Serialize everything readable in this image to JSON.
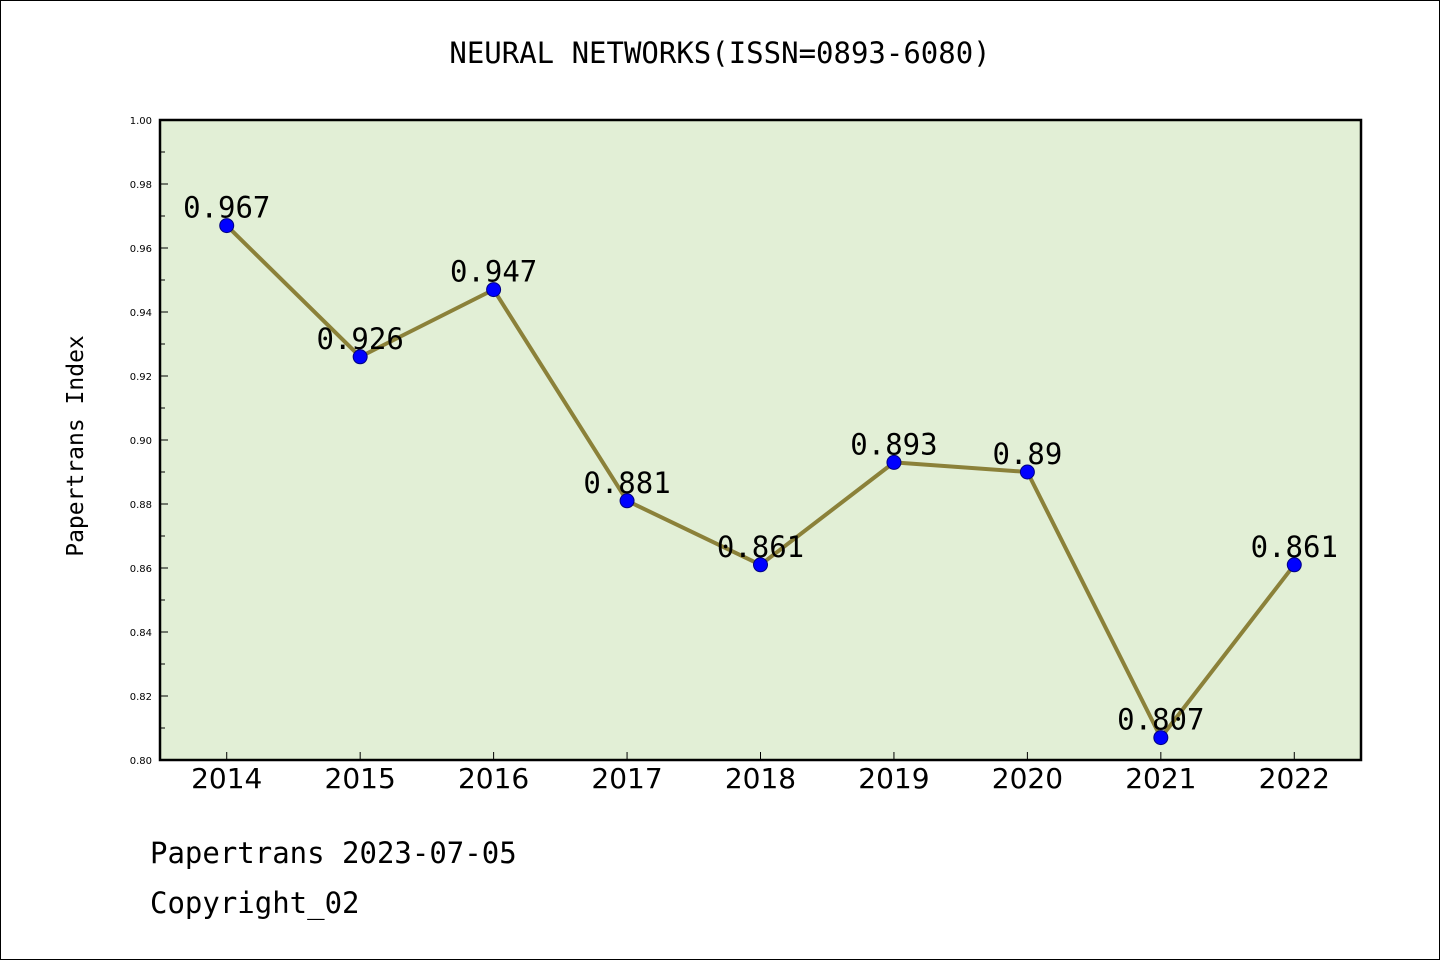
{
  "chart_data": {
    "type": "line",
    "title": "NEURAL NETWORKS(ISSN=0893-6080)",
    "xlabel": "",
    "ylabel": "Papertrans Index",
    "x": [
      "2014",
      "2015",
      "2016",
      "2017",
      "2018",
      "2019",
      "2020",
      "2021",
      "2022"
    ],
    "series": [
      {
        "values": [
          0.967,
          0.926,
          0.947,
          0.881,
          0.861,
          0.893,
          0.89,
          0.807,
          0.861
        ],
        "labels": [
          "0.967",
          "0.926",
          "0.947",
          "0.881",
          "0.861",
          "0.893",
          "0.89",
          "0.807",
          "0.861"
        ]
      }
    ],
    "ylim": [
      0.8,
      1.0
    ],
    "yticks": [
      "0.80",
      "0.82",
      "0.84",
      "0.86",
      "0.88",
      "0.90",
      "0.92",
      "0.94",
      "0.96",
      "0.98",
      "1.00"
    ],
    "grid": false,
    "legend": "none",
    "colors": {
      "plot_background": "#e2efd6",
      "line": "#8b8139",
      "marker": "#0000ff",
      "axes": "#000000"
    }
  },
  "footer": {
    "line1": "Papertrans 2023-07-05",
    "line2": "Copyright_02"
  }
}
